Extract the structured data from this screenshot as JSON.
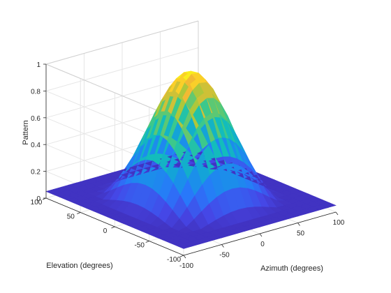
{
  "chart_data": {
    "type": "surface",
    "title": "",
    "xlabel": "Azimuth (degrees)",
    "ylabel": "Elevation (degrees)",
    "zlabel": "Pattern",
    "xlim": [
      -100,
      100
    ],
    "ylim": [
      -100,
      100
    ],
    "zlim": [
      0,
      1
    ],
    "xticks": [
      "-100",
      "-50",
      "0",
      "50",
      "100"
    ],
    "yticks": [
      "-100",
      "-50",
      "0",
      "50",
      "100"
    ],
    "zticks": [
      "0",
      "0.2",
      "0.4",
      "0.6",
      "0.8",
      "1"
    ],
    "grid": true,
    "colormap": "parula",
    "colors": {
      "low": "#3e26a8",
      "mid": "#13bfb1",
      "high": "#f9fb15",
      "axis": "#262626",
      "grid": "#e6e6e6"
    },
    "surface": {
      "function": "cos^4 beam pattern",
      "peak_value": 1,
      "peak_azimuth": 0,
      "peak_elevation": 0,
      "floor_value": 0.05,
      "grid_step": 10
    }
  }
}
